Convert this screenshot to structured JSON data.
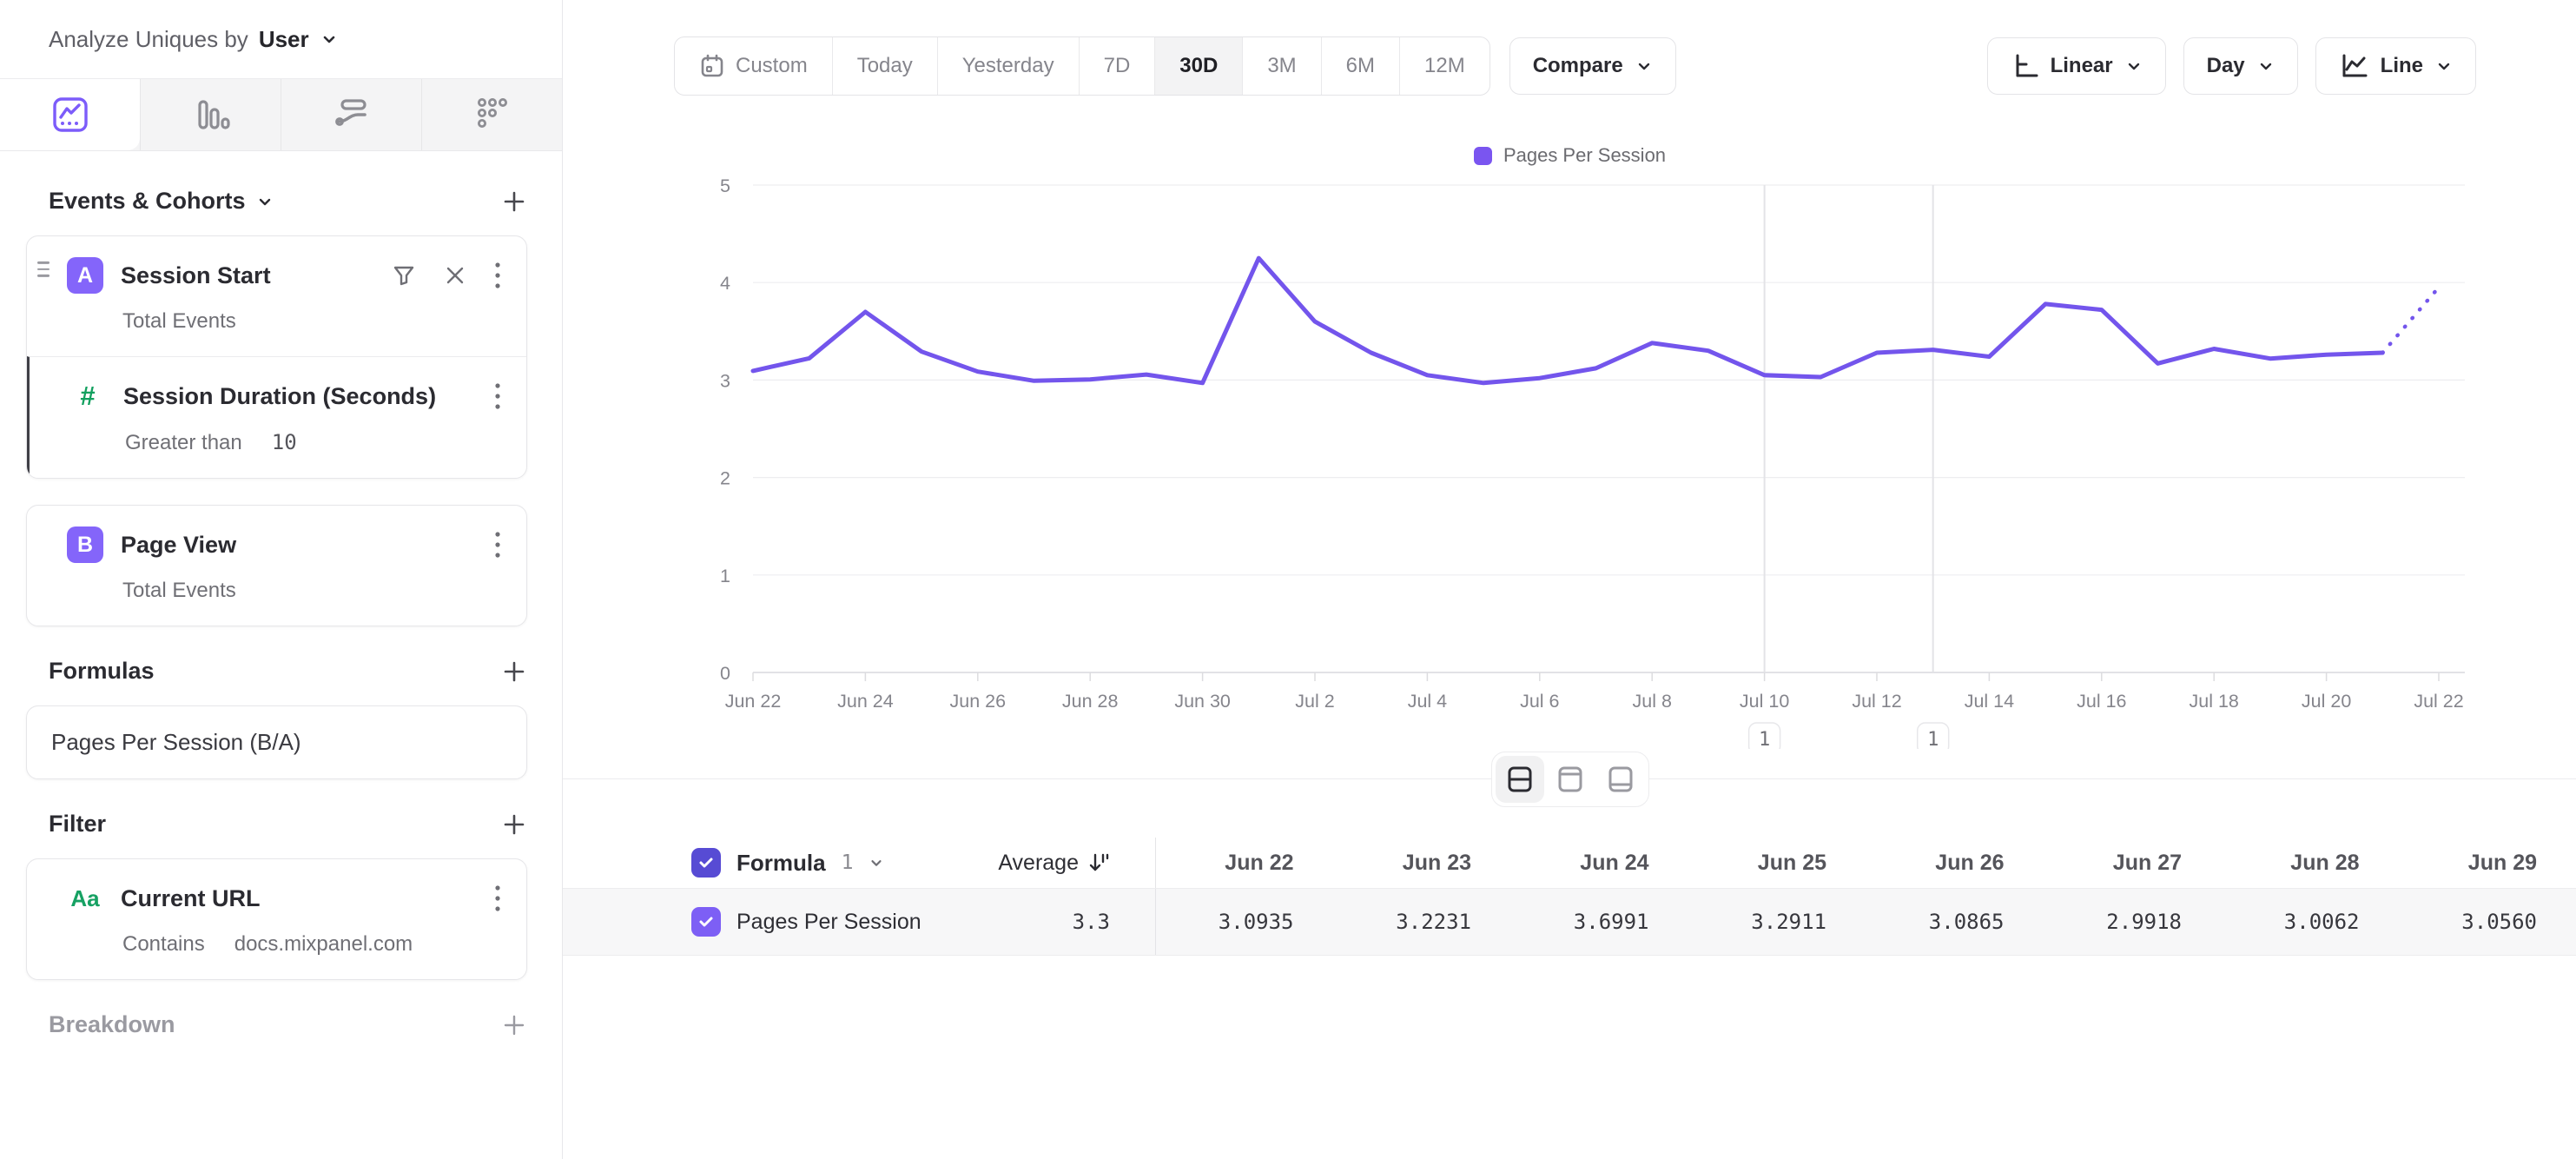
{
  "header": {
    "analyze_label": "Analyze Uniques by",
    "analyze_value": "User"
  },
  "sidebar": {
    "tabs": [
      "insights-chart",
      "bar-chart",
      "flows",
      "retention"
    ],
    "active_tab": "insights-chart",
    "events_section": {
      "title": "Events & Cohorts"
    },
    "event_a": {
      "letter": "A",
      "name": "Session Start",
      "measure": "Total Events"
    },
    "event_a_property": {
      "name": "Session Duration (Seconds)",
      "operator": "Greater than",
      "value": "10"
    },
    "event_b": {
      "letter": "B",
      "name": "Page View",
      "measure": "Total Events"
    },
    "formulas_section": {
      "title": "Formulas"
    },
    "formula": {
      "name": "Pages Per Session (B/A)"
    },
    "filter_section": {
      "title": "Filter"
    },
    "filter": {
      "type_icon": "Aa",
      "name": "Current URL",
      "operator": "Contains",
      "value": "docs.mixpanel.com"
    },
    "breakdown_section": {
      "title": "Breakdown"
    }
  },
  "toolbar": {
    "date_ranges": [
      "Custom",
      "Today",
      "Yesterday",
      "7D",
      "30D",
      "3M",
      "6M",
      "12M"
    ],
    "active_range": "30D",
    "compare_label": "Compare",
    "scale_label": "Linear",
    "interval_label": "Day",
    "chart_type_label": "Line"
  },
  "chart_data": {
    "type": "line",
    "title": "",
    "legend": [
      {
        "name": "Pages Per Session",
        "color": "#7a55f0"
      }
    ],
    "legend_position": "top-center",
    "ylim": [
      0,
      5
    ],
    "y_ticks": [
      0,
      1,
      2,
      3,
      4,
      5
    ],
    "grid": true,
    "dates": [
      "Jun 22",
      "Jun 23",
      "Jun 24",
      "Jun 25",
      "Jun 26",
      "Jun 27",
      "Jun 28",
      "Jun 29",
      "Jun 30",
      "Jul 1",
      "Jul 2",
      "Jul 3",
      "Jul 4",
      "Jul 5",
      "Jul 6",
      "Jul 7",
      "Jul 8",
      "Jul 9",
      "Jul 10",
      "Jul 11",
      "Jul 12",
      "Jul 13",
      "Jul 14",
      "Jul 15",
      "Jul 16",
      "Jul 17",
      "Jul 18",
      "Jul 19",
      "Jul 20",
      "Jul 21",
      "Jul 22"
    ],
    "values": [
      3.0935,
      3.2231,
      3.6991,
      3.2911,
      3.0865,
      2.9918,
      3.0062,
      3.056,
      2.97,
      4.25,
      3.6,
      3.28,
      3.05,
      2.97,
      3.02,
      3.12,
      3.38,
      3.3,
      3.05,
      3.03,
      3.28,
      3.31,
      3.24,
      3.78,
      3.72,
      3.17,
      3.32,
      3.22,
      3.26,
      3.28,
      3.95
    ],
    "incomplete_from_index": 29,
    "x_label_every": 2,
    "annotations": [
      {
        "index": 18,
        "date": "Jul 10",
        "label": "1"
      },
      {
        "index": 21,
        "date": "Jul 13",
        "label": "1"
      }
    ],
    "series_color": "#7355ec"
  },
  "table": {
    "header": {
      "formula_label": "Formula",
      "formula_number": "1",
      "average_label": "Average"
    },
    "columns": [
      "Jun 22",
      "Jun 23",
      "Jun 24",
      "Jun 25",
      "Jun 26",
      "Jun 27",
      "Jun 28",
      "Jun 29"
    ],
    "row": {
      "checked": true,
      "name": "Pages Per Session",
      "average": "3.3",
      "values": [
        "3.0935",
        "3.2231",
        "3.6991",
        "3.2911",
        "3.0865",
        "2.9918",
        "3.0062",
        "3.0560"
      ]
    }
  },
  "colors": {
    "accent_purple": "#7355ec",
    "badge_purple": "#8465fa",
    "checkbox_dark": "#574bd4",
    "checkbox_light": "#7d5ff5",
    "green": "#12a05f",
    "grid": "#ededf0",
    "axis": "#d9d9dd",
    "annotation_line": "#e3e3e7",
    "row_bg": "#f7f7f8",
    "tabstrip_bg": "#f4f4f5"
  }
}
